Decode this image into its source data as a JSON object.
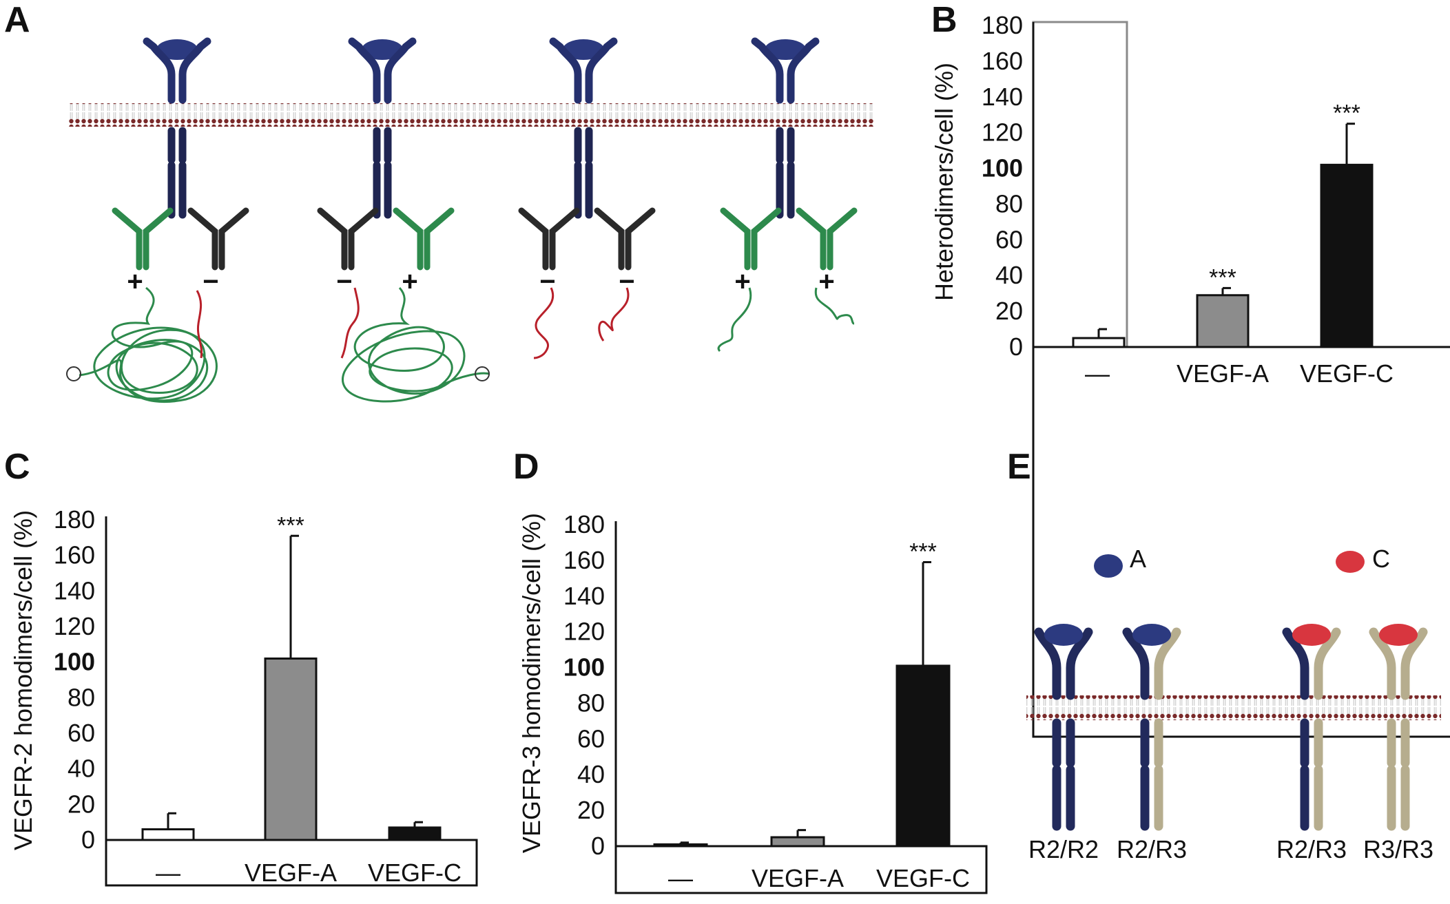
{
  "panel_labels": {
    "a": "A",
    "b": "B",
    "c": "C",
    "d": "D",
    "e": "E"
  },
  "panel_a": {
    "receptors": [
      {
        "left_sign": "+",
        "right_sign": "−"
      },
      {
        "left_sign": "−",
        "right_sign": "+"
      },
      {
        "left_sign": "−",
        "right_sign": "−"
      },
      {
        "left_sign": "+",
        "right_sign": "+"
      }
    ]
  },
  "panel_e": {
    "legend": [
      {
        "label": "A",
        "color": "#2c3a80"
      },
      {
        "label": "C",
        "color": "#d8363f"
      }
    ],
    "pairs": [
      "R2/R2",
      "R2/R3",
      "R2/R3",
      "R3/R3"
    ],
    "colors": {
      "r2": "#222a5c",
      "r3": "#b6ad8e"
    }
  },
  "colors": {
    "none": "#ffffff",
    "vegf_a": "#8c8c8c",
    "vegf_c": "#111111",
    "r2": "#25306e",
    "green": "#2d8a4c",
    "red": "#b8202a"
  },
  "chart_data": [
    {
      "id": "B",
      "type": "bar",
      "ylabel": "Heterodimers/cell (%)",
      "ylim": [
        0,
        180
      ],
      "yticks": [
        0,
        20,
        40,
        60,
        80,
        100,
        120,
        140,
        160,
        180
      ],
      "bold_tick": 100,
      "categories": [
        "—",
        "VEGF-A",
        "VEGF-C"
      ],
      "values": [
        5,
        29,
        102
      ],
      "errors": [
        5,
        4,
        23
      ],
      "significance": [
        "",
        "***",
        "***"
      ]
    },
    {
      "id": "C",
      "type": "bar",
      "ylabel": "VEGFR-2 homodimers/cell (%)",
      "ylim": [
        0,
        180
      ],
      "yticks": [
        0,
        20,
        40,
        60,
        80,
        100,
        120,
        140,
        160,
        180
      ],
      "bold_tick": 100,
      "categories": [
        "—",
        "VEGF-A",
        "VEGF-C"
      ],
      "values": [
        6,
        102,
        7
      ],
      "errors": [
        9,
        69,
        3
      ],
      "significance": [
        "",
        "***",
        ""
      ]
    },
    {
      "id": "D",
      "type": "bar",
      "ylabel": "VEGFR-3 homodimers/cell (%)",
      "ylim": [
        0,
        180
      ],
      "yticks": [
        0,
        20,
        40,
        60,
        80,
        100,
        120,
        140,
        160,
        180
      ],
      "bold_tick": 100,
      "categories": [
        "—",
        "VEGF-A",
        "VEGF-C"
      ],
      "values": [
        1,
        5,
        101
      ],
      "errors": [
        1,
        4,
        58
      ],
      "significance": [
        "",
        "",
        "***"
      ]
    }
  ]
}
